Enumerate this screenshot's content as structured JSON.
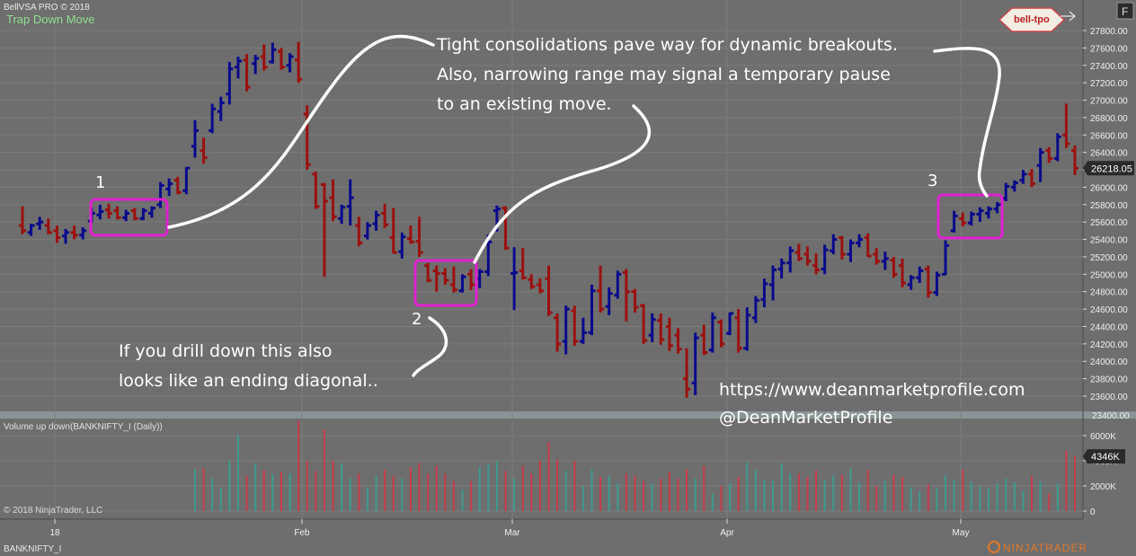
{
  "header": {
    "app_title": "BellVSA PRO © 2018",
    "indicator_name": "Trap Down Move",
    "f_button_label": "F",
    "logo_text": "bell-tpo"
  },
  "price_panel": {
    "y_ticks": [
      27800,
      27600,
      27400,
      27200,
      27000,
      26800,
      26600,
      26400,
      26200,
      26000,
      25800,
      25600,
      25400,
      25200,
      25000,
      24800,
      24600,
      24400,
      24200,
      24000,
      23800,
      23600
    ],
    "y_tick_labels": [
      "27800.00",
      "27600.00",
      "27400.00",
      "27200.00",
      "27000.00",
      "26800.00",
      "26600.00",
      "26400.00",
      "26200.00",
      "26000.00",
      "25800.00",
      "25600.00",
      "25400.00",
      "25200.00",
      "25000.00",
      "24800.00",
      "24600.00",
      "24400.00",
      "24200.00",
      "24000.00",
      "23800.00",
      "23600.00"
    ],
    "last_price_label": "26218.05",
    "partial_tick_label": "23400.00"
  },
  "volume_panel": {
    "title": "Volume up down(BANKNIFTY_I (Daily))",
    "y_tick_labels": [
      "6000K",
      "4000K",
      "2000K",
      "0"
    ],
    "y_ticks": [
      6000,
      4000,
      2000,
      0
    ],
    "last_volume_label": "4346K"
  },
  "x_axis_labels": [
    "18",
    "Feb",
    "Mar",
    "Apr",
    "May"
  ],
  "footer": {
    "copyright": "© 2018 NinjaTrader, LLC",
    "instrument": "BANKNIFTY_I",
    "brand": "NINJATRADER"
  },
  "annotations": {
    "label_1": "1",
    "label_2": "2",
    "label_3": "3",
    "note_consolidation_line1": "Tight consolidations pave way for dynamic breakouts.",
    "note_consolidation_line2": "Also, narrowing range may signal a temporary pause",
    "note_consolidation_line3": "to an existing move.",
    "note_diagonal_line1": "If you drill down this also",
    "note_diagonal_line2": "looks like an ending diagonal..",
    "website": "https://www.deanmarketprofile.com",
    "handle": "@DeanMarketProfile"
  },
  "colors": {
    "background": "#6e6e6e",
    "up_bar": "#0a0a8c",
    "down_bar": "#9b1111",
    "highlight_box": "#e020d0",
    "vol_up": "#3e9a8e",
    "vol_down": "#c83c4c",
    "annotation_text": "#ffffff"
  },
  "chart_data": {
    "type": "ohlc",
    "price_range": [
      23400,
      27950
    ],
    "volume_range": [
      0,
      7200
    ],
    "bars": [
      {
        "o": 25560,
        "h": 25780,
        "l": 25460,
        "c": 25500,
        "v": 0
      },
      {
        "o": 25480,
        "h": 25580,
        "l": 25440,
        "c": 25560,
        "v": 0
      },
      {
        "o": 25580,
        "h": 25660,
        "l": 25510,
        "c": 25600,
        "v": 0
      },
      {
        "o": 25560,
        "h": 25640,
        "l": 25460,
        "c": 25480,
        "v": 0
      },
      {
        "o": 25500,
        "h": 25560,
        "l": 25360,
        "c": 25420,
        "v": 0
      },
      {
        "o": 25440,
        "h": 25520,
        "l": 25350,
        "c": 25480,
        "v": 0
      },
      {
        "o": 25480,
        "h": 25560,
        "l": 25400,
        "c": 25450,
        "v": 0
      },
      {
        "o": 25450,
        "h": 25540,
        "l": 25400,
        "c": 25500,
        "v": 0
      },
      {
        "o": 25610,
        "h": 25760,
        "l": 25590,
        "c": 25700,
        "v": 0
      },
      {
        "o": 25680,
        "h": 25800,
        "l": 25630,
        "c": 25720,
        "v": 0
      },
      {
        "o": 25740,
        "h": 25810,
        "l": 25640,
        "c": 25700,
        "v": 0
      },
      {
        "o": 25730,
        "h": 25780,
        "l": 25630,
        "c": 25650,
        "v": 0
      },
      {
        "o": 25650,
        "h": 25740,
        "l": 25610,
        "c": 25700,
        "v": 0
      },
      {
        "o": 25730,
        "h": 25760,
        "l": 25620,
        "c": 25640,
        "v": 0
      },
      {
        "o": 25640,
        "h": 25760,
        "l": 25620,
        "c": 25730,
        "v": 0
      },
      {
        "o": 25700,
        "h": 25780,
        "l": 25650,
        "c": 25760,
        "v": 0
      },
      {
        "o": 25800,
        "h": 26060,
        "l": 25760,
        "c": 26020,
        "v": 0
      },
      {
        "o": 25980,
        "h": 26100,
        "l": 25900,
        "c": 26040,
        "v": 0
      },
      {
        "o": 26080,
        "h": 26120,
        "l": 25920,
        "c": 25940,
        "v": 0
      },
      {
        "o": 25960,
        "h": 26230,
        "l": 25920,
        "c": 26220,
        "v": 0
      },
      {
        "o": 26470,
        "h": 26770,
        "l": 26340,
        "c": 26650,
        "v": 3300
      },
      {
        "o": 26420,
        "h": 26570,
        "l": 26270,
        "c": 26340,
        "v": 3400
      },
      {
        "o": 26650,
        "h": 26960,
        "l": 26620,
        "c": 26900,
        "v": 2600
      },
      {
        "o": 26870,
        "h": 27040,
        "l": 26760,
        "c": 26970,
        "v": 1850
      },
      {
        "o": 27070,
        "h": 27440,
        "l": 26950,
        "c": 27360,
        "v": 4000
      },
      {
        "o": 27380,
        "h": 27500,
        "l": 27250,
        "c": 27450,
        "v": 6000
      },
      {
        "o": 27460,
        "h": 27530,
        "l": 27100,
        "c": 27150,
        "v": 2800
      },
      {
        "o": 27420,
        "h": 27520,
        "l": 27300,
        "c": 27480,
        "v": 3800
      },
      {
        "o": 27500,
        "h": 27640,
        "l": 27340,
        "c": 27380,
        "v": 3300
      },
      {
        "o": 27440,
        "h": 27660,
        "l": 27420,
        "c": 27580,
        "v": 2900
      },
      {
        "o": 27560,
        "h": 27600,
        "l": 27350,
        "c": 27380,
        "v": 3100
      },
      {
        "o": 27400,
        "h": 27540,
        "l": 27320,
        "c": 27500,
        "v": 3000
      },
      {
        "o": 27460,
        "h": 27670,
        "l": 27200,
        "c": 27240,
        "v": 7200
      },
      {
        "o": 26840,
        "h": 26940,
        "l": 26200,
        "c": 26260,
        "v": 4000
      },
      {
        "o": 26150,
        "h": 26180,
        "l": 25750,
        "c": 25780,
        "v": 3200
      },
      {
        "o": 26030,
        "h": 26050,
        "l": 24970,
        "c": 25840,
        "v": 6500
      },
      {
        "o": 25880,
        "h": 26090,
        "l": 25610,
        "c": 25660,
        "v": 4000
      },
      {
        "o": 25640,
        "h": 25800,
        "l": 25580,
        "c": 25770,
        "v": 3800
      },
      {
        "o": 25780,
        "h": 26090,
        "l": 25560,
        "c": 25880,
        "v": 2600
      },
      {
        "o": 25560,
        "h": 25660,
        "l": 25320,
        "c": 25360,
        "v": 3000
      },
      {
        "o": 25440,
        "h": 25600,
        "l": 25400,
        "c": 25560,
        "v": 1900
      },
      {
        "o": 25580,
        "h": 25730,
        "l": 25500,
        "c": 25680,
        "v": 2800
      },
      {
        "o": 25700,
        "h": 25810,
        "l": 25530,
        "c": 25570,
        "v": 3300
      },
      {
        "o": 25420,
        "h": 25760,
        "l": 25240,
        "c": 25250,
        "v": 2800
      },
      {
        "o": 25260,
        "h": 25480,
        "l": 25180,
        "c": 25430,
        "v": 2600
      },
      {
        "o": 25410,
        "h": 25560,
        "l": 25350,
        "c": 25370,
        "v": 3500
      },
      {
        "o": 25380,
        "h": 25660,
        "l": 25200,
        "c": 25250,
        "v": 3800
      },
      {
        "o": 25100,
        "h": 25130,
        "l": 24910,
        "c": 24930,
        "v": 3000
      },
      {
        "o": 25040,
        "h": 25100,
        "l": 24800,
        "c": 25010,
        "v": 3600
      },
      {
        "o": 25010,
        "h": 25070,
        "l": 24880,
        "c": 24930,
        "v": 3000
      },
      {
        "o": 24880,
        "h": 25090,
        "l": 24790,
        "c": 24820,
        "v": 2400
      },
      {
        "o": 24810,
        "h": 25000,
        "l": 24790,
        "c": 24970,
        "v": 1700
      },
      {
        "o": 25000,
        "h": 25060,
        "l": 24820,
        "c": 24880,
        "v": 2400
      },
      {
        "o": 24950,
        "h": 25060,
        "l": 24840,
        "c": 25030,
        "v": 3500
      },
      {
        "o": 25030,
        "h": 25460,
        "l": 24980,
        "c": 25370,
        "v": 3800
      },
      {
        "o": 25730,
        "h": 25790,
        "l": 25490,
        "c": 25750,
        "v": 4000
      },
      {
        "o": 25760,
        "h": 25780,
        "l": 25280,
        "c": 25300,
        "v": 3200
      },
      {
        "o": 25010,
        "h": 25310,
        "l": 24590,
        "c": 25020,
        "v": 2600
      },
      {
        "o": 25040,
        "h": 25300,
        "l": 24940,
        "c": 24960,
        "v": 3600
      },
      {
        "o": 24940,
        "h": 25000,
        "l": 24830,
        "c": 24860,
        "v": 3000
      },
      {
        "o": 24880,
        "h": 24950,
        "l": 24780,
        "c": 24810,
        "v": 4000
      },
      {
        "o": 24950,
        "h": 25100,
        "l": 24520,
        "c": 24560,
        "v": 5500
      },
      {
        "o": 24500,
        "h": 24550,
        "l": 24110,
        "c": 24200,
        "v": 4100
      },
      {
        "o": 24230,
        "h": 24640,
        "l": 24080,
        "c": 24600,
        "v": 3200
      },
      {
        "o": 24580,
        "h": 24640,
        "l": 24180,
        "c": 24230,
        "v": 4000
      },
      {
        "o": 24230,
        "h": 24500,
        "l": 24200,
        "c": 24330,
        "v": 2000
      },
      {
        "o": 24330,
        "h": 24880,
        "l": 24300,
        "c": 24810,
        "v": 3300
      },
      {
        "o": 24810,
        "h": 25100,
        "l": 24560,
        "c": 24600,
        "v": 2700
      },
      {
        "o": 24630,
        "h": 24850,
        "l": 24530,
        "c": 24780,
        "v": 2800
      },
      {
        "o": 24760,
        "h": 25040,
        "l": 24720,
        "c": 25000,
        "v": 2200
      },
      {
        "o": 25020,
        "h": 25060,
        "l": 24460,
        "c": 24800,
        "v": 3000
      },
      {
        "o": 24800,
        "h": 24830,
        "l": 24560,
        "c": 24620,
        "v": 2800
      },
      {
        "o": 24640,
        "h": 24660,
        "l": 24200,
        "c": 24240,
        "v": 2400
      },
      {
        "o": 24300,
        "h": 24550,
        "l": 24220,
        "c": 24480,
        "v": 2200
      },
      {
        "o": 24470,
        "h": 24550,
        "l": 24190,
        "c": 24250,
        "v": 2600
      },
      {
        "o": 24400,
        "h": 24500,
        "l": 24120,
        "c": 24180,
        "v": 3100
      },
      {
        "o": 24300,
        "h": 24380,
        "l": 24090,
        "c": 24140,
        "v": 2600
      },
      {
        "o": 23800,
        "h": 24150,
        "l": 23580,
        "c": 23680,
        "v": 3300
      },
      {
        "o": 23750,
        "h": 24330,
        "l": 23610,
        "c": 24270,
        "v": 2600
      },
      {
        "o": 24300,
        "h": 24420,
        "l": 24070,
        "c": 24100,
        "v": 3600
      },
      {
        "o": 24130,
        "h": 24560,
        "l": 24100,
        "c": 24500,
        "v": 1400
      },
      {
        "o": 24450,
        "h": 24480,
        "l": 24160,
        "c": 24200,
        "v": 2000
      },
      {
        "o": 24320,
        "h": 24560,
        "l": 24300,
        "c": 24550,
        "v": 2200
      },
      {
        "o": 24500,
        "h": 24600,
        "l": 24100,
        "c": 24150,
        "v": 2700
      },
      {
        "o": 24150,
        "h": 24620,
        "l": 24120,
        "c": 24530,
        "v": 3900
      },
      {
        "o": 24500,
        "h": 24750,
        "l": 24440,
        "c": 24700,
        "v": 3300
      },
      {
        "o": 24710,
        "h": 24950,
        "l": 24620,
        "c": 24890,
        "v": 2500
      },
      {
        "o": 24880,
        "h": 25100,
        "l": 24700,
        "c": 25050,
        "v": 2400
      },
      {
        "o": 25060,
        "h": 25180,
        "l": 24950,
        "c": 25130,
        "v": 3800
      },
      {
        "o": 25130,
        "h": 25320,
        "l": 25020,
        "c": 25270,
        "v": 3000
      },
      {
        "o": 25250,
        "h": 25350,
        "l": 25150,
        "c": 25180,
        "v": 3000
      },
      {
        "o": 25230,
        "h": 25320,
        "l": 25100,
        "c": 25150,
        "v": 2700
      },
      {
        "o": 25100,
        "h": 25240,
        "l": 25000,
        "c": 25050,
        "v": 3200
      },
      {
        "o": 25060,
        "h": 25340,
        "l": 25000,
        "c": 25280,
        "v": 2500
      },
      {
        "o": 25270,
        "h": 25460,
        "l": 25230,
        "c": 25400,
        "v": 2800
      },
      {
        "o": 25420,
        "h": 25440,
        "l": 25170,
        "c": 25230,
        "v": 2900
      },
      {
        "o": 25230,
        "h": 25400,
        "l": 25140,
        "c": 25360,
        "v": 3400
      },
      {
        "o": 25360,
        "h": 25460,
        "l": 25310,
        "c": 25400,
        "v": 2300
      },
      {
        "o": 25420,
        "h": 25470,
        "l": 25200,
        "c": 25210,
        "v": 3300
      },
      {
        "o": 25230,
        "h": 25300,
        "l": 25110,
        "c": 25150,
        "v": 2000
      },
      {
        "o": 25150,
        "h": 25260,
        "l": 25050,
        "c": 25180,
        "v": 2400
      },
      {
        "o": 25160,
        "h": 25200,
        "l": 24960,
        "c": 25000,
        "v": 2900
      },
      {
        "o": 25100,
        "h": 25180,
        "l": 24850,
        "c": 24900,
        "v": 2700
      },
      {
        "o": 24880,
        "h": 24990,
        "l": 24820,
        "c": 24960,
        "v": 1900
      },
      {
        "o": 24960,
        "h": 25090,
        "l": 24900,
        "c": 25040,
        "v": 1600
      },
      {
        "o": 25060,
        "h": 25100,
        "l": 24730,
        "c": 24790,
        "v": 2100
      },
      {
        "o": 24790,
        "h": 25030,
        "l": 24750,
        "c": 24990,
        "v": 1800
      },
      {
        "o": 25000,
        "h": 25390,
        "l": 24990,
        "c": 25330,
        "v": 2800
      },
      {
        "o": 25500,
        "h": 25730,
        "l": 25480,
        "c": 25670,
        "v": 2500
      },
      {
        "o": 25640,
        "h": 25710,
        "l": 25550,
        "c": 25590,
        "v": 3300
      },
      {
        "o": 25590,
        "h": 25720,
        "l": 25560,
        "c": 25690,
        "v": 2300
      },
      {
        "o": 25690,
        "h": 25770,
        "l": 25600,
        "c": 25730,
        "v": 2000
      },
      {
        "o": 25700,
        "h": 25780,
        "l": 25640,
        "c": 25750,
        "v": 1800
      },
      {
        "o": 25750,
        "h": 25830,
        "l": 25700,
        "c": 25800,
        "v": 2200
      },
      {
        "o": 25870,
        "h": 26050,
        "l": 25840,
        "c": 26010,
        "v": 2600
      },
      {
        "o": 26000,
        "h": 26080,
        "l": 25950,
        "c": 26050,
        "v": 2300
      },
      {
        "o": 26080,
        "h": 26200,
        "l": 26040,
        "c": 26150,
        "v": 1600
      },
      {
        "o": 26150,
        "h": 26210,
        "l": 26000,
        "c": 26040,
        "v": 2800
      },
      {
        "o": 26250,
        "h": 26450,
        "l": 26060,
        "c": 26400,
        "v": 2300
      },
      {
        "o": 26420,
        "h": 26460,
        "l": 26280,
        "c": 26330,
        "v": 1400
      },
      {
        "o": 26330,
        "h": 26620,
        "l": 26300,
        "c": 26580,
        "v": 2200
      },
      {
        "o": 26600,
        "h": 26960,
        "l": 26450,
        "c": 26500,
        "v": 4800
      },
      {
        "o": 26420,
        "h": 26480,
        "l": 26140,
        "c": 26218,
        "v": 4346
      }
    ]
  }
}
